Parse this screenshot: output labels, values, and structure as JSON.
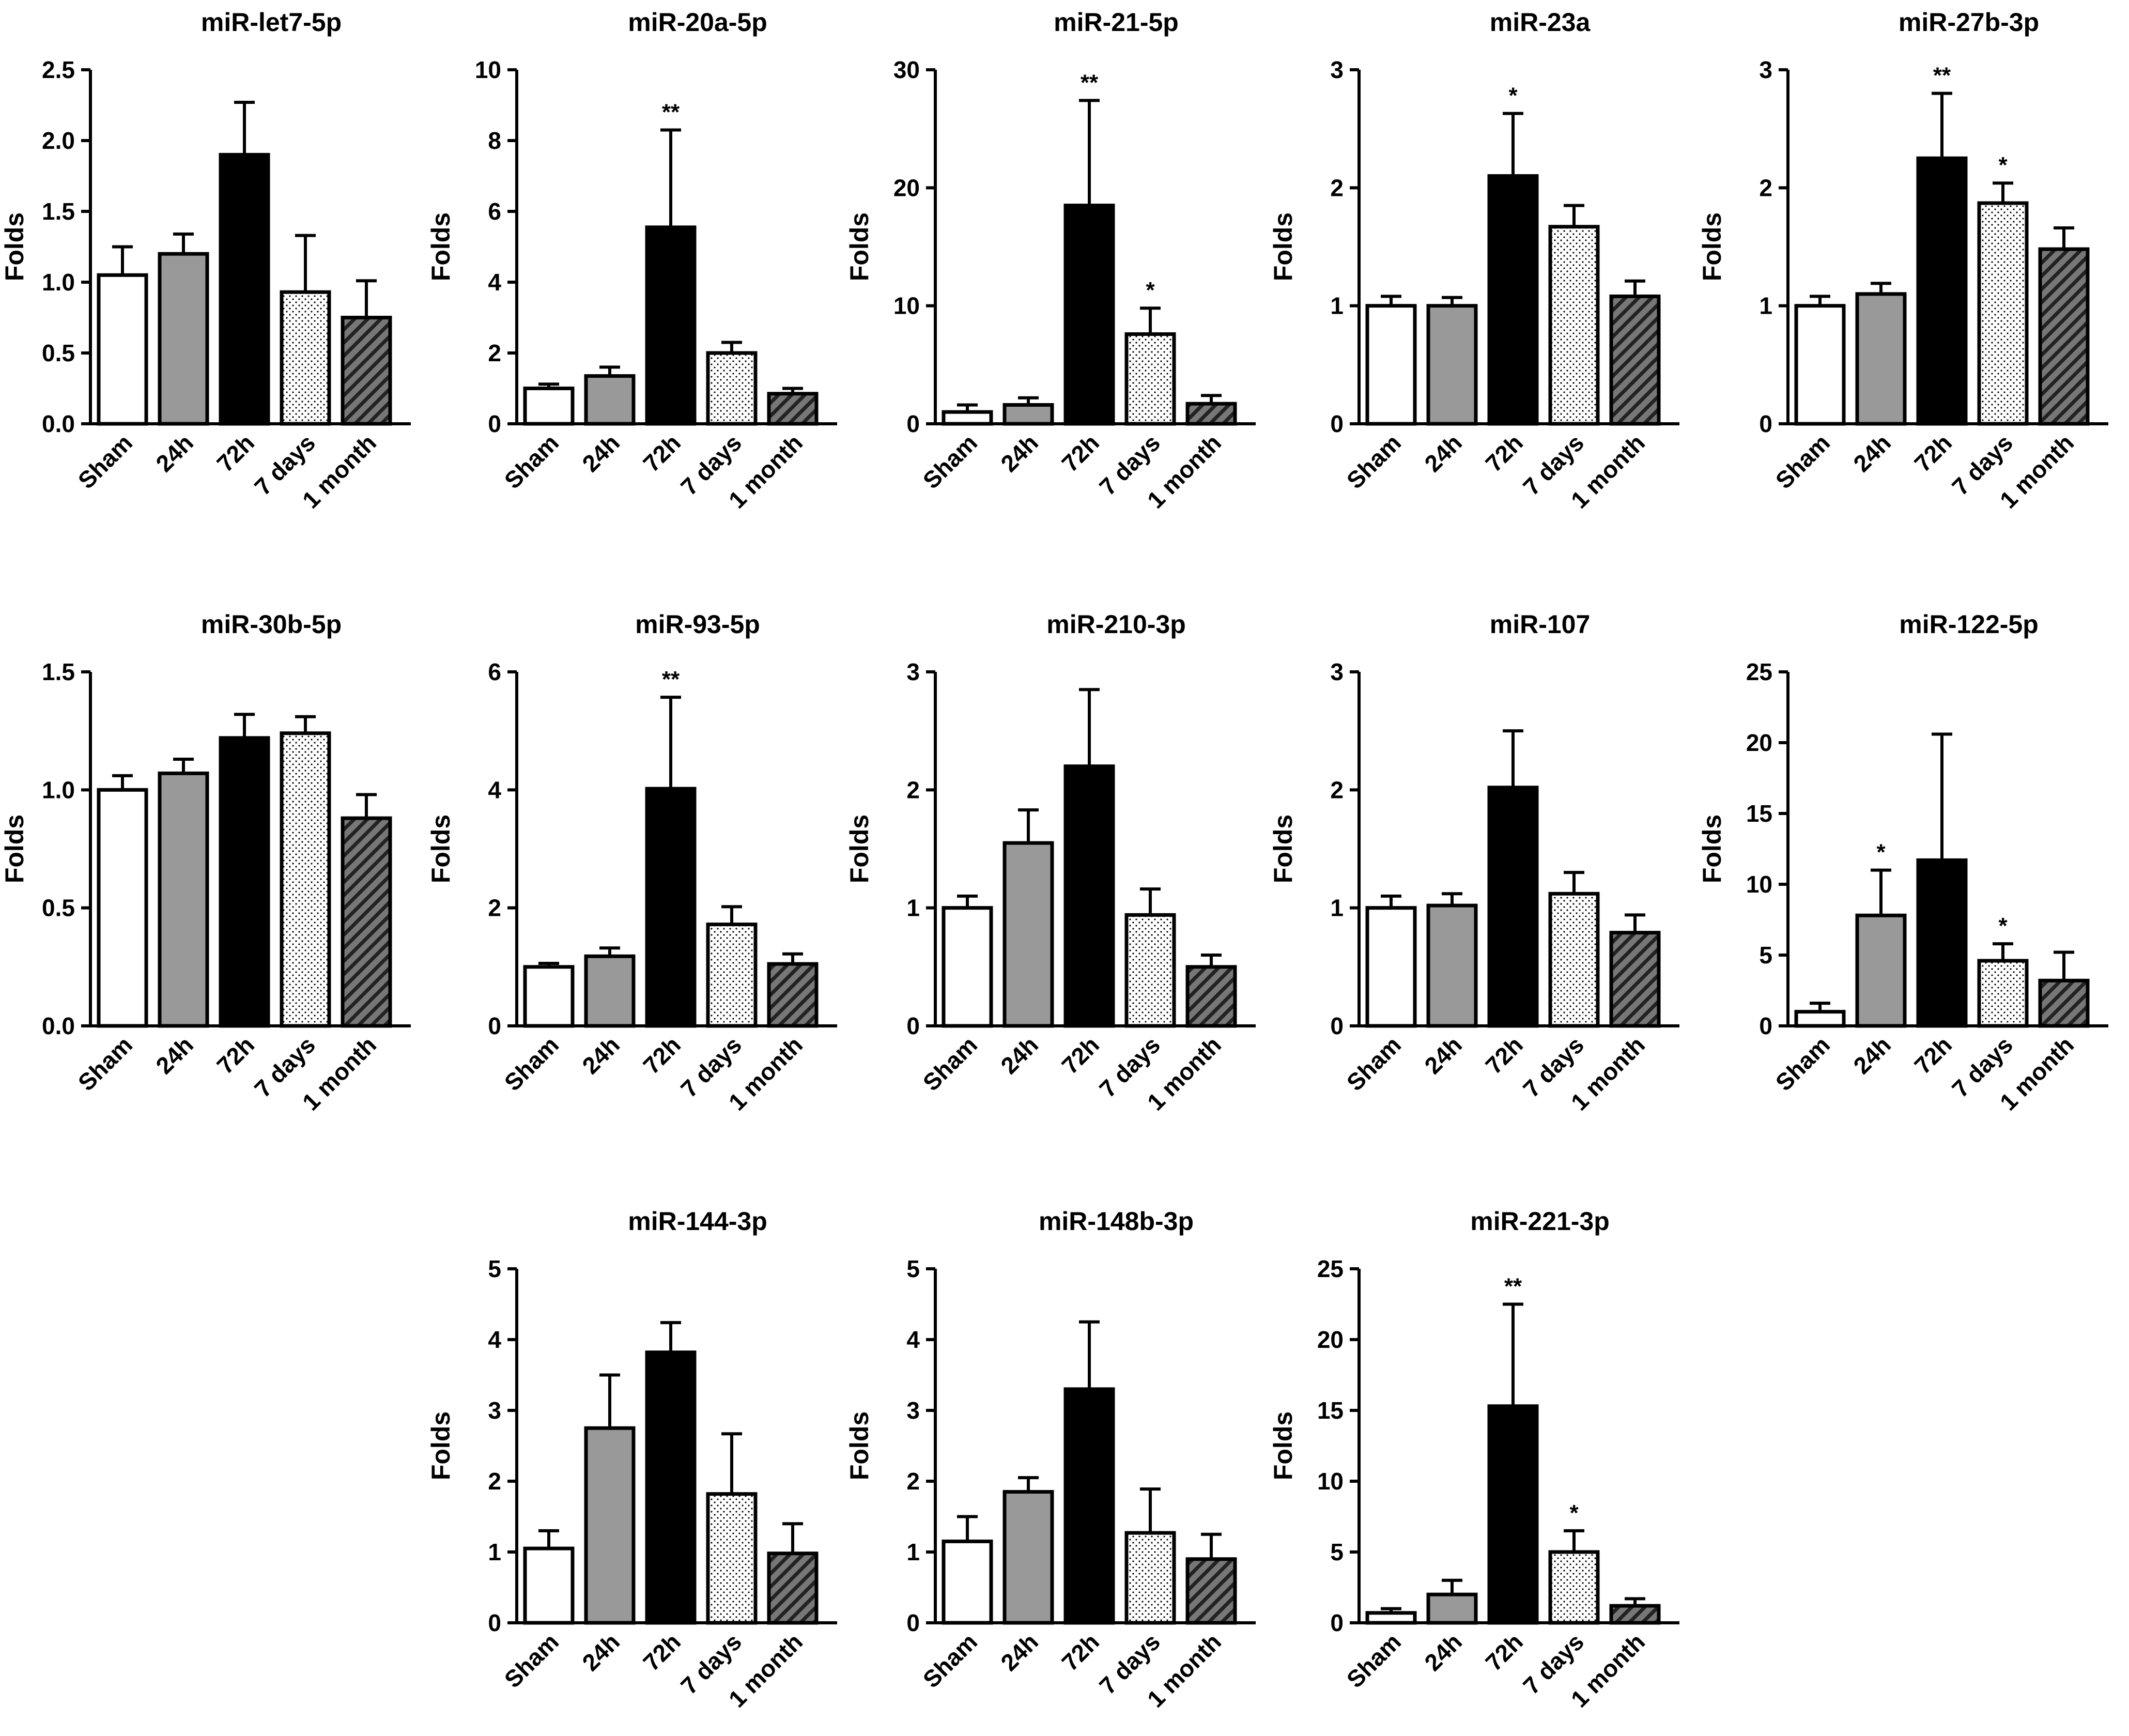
{
  "colors": {
    "sham": "#ffffff",
    "h24": "#999999",
    "h72": "#000000",
    "days7": "#ffffff",
    "month1": "#777777"
  },
  "chart_data": [
    {
      "type": "bar",
      "title": "miR-let7-5p",
      "ylabel": "Folds",
      "categories": [
        "Sham",
        "24h",
        "72h",
        "7 days",
        "1 month"
      ],
      "values": [
        1.05,
        1.2,
        1.9,
        0.93,
        0.75
      ],
      "errors": [
        0.2,
        0.14,
        0.37,
        0.4,
        0.26
      ],
      "significance": [
        "",
        "",
        "",
        "",
        ""
      ],
      "ylim": [
        0,
        2.5
      ],
      "yticks": [
        "0.0",
        "0.5",
        "1.0",
        "1.5",
        "2.0",
        "2.5"
      ]
    },
    {
      "type": "bar",
      "title": "miR-20a-5p",
      "ylabel": "Folds",
      "categories": [
        "Sham",
        "24h",
        "72h",
        "7 days",
        "1 month"
      ],
      "values": [
        1.0,
        1.35,
        5.55,
        2.0,
        0.85
      ],
      "errors": [
        0.12,
        0.25,
        2.75,
        0.3,
        0.15
      ],
      "significance": [
        "",
        "",
        "**",
        "",
        ""
      ],
      "ylim": [
        0,
        10
      ],
      "yticks": [
        "0",
        "2",
        "4",
        "6",
        "8",
        "10"
      ]
    },
    {
      "type": "bar",
      "title": "miR-21-5p",
      "ylabel": "Folds",
      "categories": [
        "Sham",
        "24h",
        "72h",
        "7 days",
        "1 month"
      ],
      "values": [
        1.0,
        1.6,
        18.5,
        7.6,
        1.7
      ],
      "errors": [
        0.6,
        0.6,
        8.9,
        2.2,
        0.7
      ],
      "significance": [
        "",
        "",
        "**",
        "*",
        ""
      ],
      "ylim": [
        0,
        30
      ],
      "yticks": [
        "0",
        "10",
        "20",
        "30"
      ]
    },
    {
      "type": "bar",
      "title": "miR-23a",
      "ylabel": "Folds",
      "categories": [
        "Sham",
        "24h",
        "72h",
        "7 days",
        "1 month"
      ],
      "values": [
        1.0,
        1.0,
        2.1,
        1.67,
        1.08
      ],
      "errors": [
        0.08,
        0.07,
        0.53,
        0.18,
        0.13
      ],
      "significance": [
        "",
        "",
        "*",
        "",
        ""
      ],
      "ylim": [
        0,
        3
      ],
      "yticks": [
        "0",
        "1",
        "2",
        "3"
      ]
    },
    {
      "type": "bar",
      "title": "miR-27b-3p",
      "ylabel": "Folds",
      "categories": [
        "Sham",
        "24h",
        "72h",
        "7 days",
        "1 month"
      ],
      "values": [
        1.0,
        1.1,
        2.25,
        1.87,
        1.48
      ],
      "errors": [
        0.08,
        0.09,
        0.55,
        0.17,
        0.18
      ],
      "significance": [
        "",
        "",
        "**",
        "*",
        ""
      ],
      "ylim": [
        0,
        3
      ],
      "yticks": [
        "0",
        "1",
        "2",
        "3"
      ]
    },
    {
      "type": "bar",
      "title": "miR-30b-5p",
      "ylabel": "Folds",
      "categories": [
        "Sham",
        "24h",
        "72h",
        "7 days",
        "1 month"
      ],
      "values": [
        1.0,
        1.07,
        1.22,
        1.24,
        0.88
      ],
      "errors": [
        0.06,
        0.06,
        0.1,
        0.07,
        0.1
      ],
      "significance": [
        "",
        "",
        "",
        "",
        ""
      ],
      "ylim": [
        0,
        1.5
      ],
      "yticks": [
        "0.0",
        "0.5",
        "1.0",
        "1.5"
      ]
    },
    {
      "type": "bar",
      "title": "miR-93-5p",
      "ylabel": "Folds",
      "categories": [
        "Sham",
        "24h",
        "72h",
        "7 days",
        "1 month"
      ],
      "values": [
        1.0,
        1.18,
        4.02,
        1.72,
        1.05
      ],
      "errors": [
        0.06,
        0.14,
        1.55,
        0.3,
        0.17
      ],
      "significance": [
        "",
        "",
        "**",
        "",
        ""
      ],
      "ylim": [
        0,
        6
      ],
      "yticks": [
        "0",
        "2",
        "4",
        "6"
      ]
    },
    {
      "type": "bar",
      "title": "miR-210-3p",
      "ylabel": "Folds",
      "categories": [
        "Sham",
        "24h",
        "72h",
        "7 days",
        "1 month"
      ],
      "values": [
        1.0,
        1.55,
        2.2,
        0.94,
        0.5
      ],
      "errors": [
        0.1,
        0.28,
        0.65,
        0.22,
        0.1
      ],
      "significance": [
        "",
        "",
        "",
        "",
        ""
      ],
      "ylim": [
        0,
        3
      ],
      "yticks": [
        "0",
        "1",
        "2",
        "3"
      ]
    },
    {
      "type": "bar",
      "title": "miR-107",
      "ylabel": "Folds",
      "categories": [
        "Sham",
        "24h",
        "72h",
        "7 days",
        "1 month"
      ],
      "values": [
        1.0,
        1.02,
        2.02,
        1.12,
        0.79
      ],
      "errors": [
        0.1,
        0.1,
        0.48,
        0.18,
        0.15
      ],
      "significance": [
        "",
        "",
        "",
        "",
        ""
      ],
      "ylim": [
        0,
        3
      ],
      "yticks": [
        "0",
        "1",
        "2",
        "3"
      ]
    },
    {
      "type": "bar",
      "title": "miR-122-5p",
      "ylabel": "Folds",
      "categories": [
        "Sham",
        "24h",
        "72h",
        "7 days",
        "1 month"
      ],
      "values": [
        1.0,
        7.8,
        11.7,
        4.6,
        3.2
      ],
      "errors": [
        0.6,
        3.2,
        8.9,
        1.2,
        2.0
      ],
      "significance": [
        "",
        "*",
        "",
        "*",
        ""
      ],
      "ylim": [
        0,
        25
      ],
      "yticks": [
        "0",
        "5",
        "10",
        "15",
        "20",
        "25"
      ]
    },
    {
      "type": "bar",
      "title": "miR-144-3p",
      "ylabel": "Folds",
      "categories": [
        "Sham",
        "24h",
        "72h",
        "7 days",
        "1 month"
      ],
      "values": [
        1.05,
        2.75,
        3.82,
        1.82,
        0.98
      ],
      "errors": [
        0.25,
        0.75,
        0.42,
        0.85,
        0.42
      ],
      "significance": [
        "",
        "",
        "",
        "",
        ""
      ],
      "ylim": [
        0,
        5
      ],
      "yticks": [
        "0",
        "1",
        "2",
        "3",
        "4",
        "5"
      ]
    },
    {
      "type": "bar",
      "title": "miR-148b-3p",
      "ylabel": "Folds",
      "categories": [
        "Sham",
        "24h",
        "72h",
        "7 days",
        "1 month"
      ],
      "values": [
        1.15,
        1.85,
        3.3,
        1.27,
        0.9
      ],
      "errors": [
        0.35,
        0.2,
        0.95,
        0.62,
        0.35
      ],
      "significance": [
        "",
        "",
        "",
        "",
        ""
      ],
      "ylim": [
        0,
        5
      ],
      "yticks": [
        "0",
        "1",
        "2",
        "3",
        "4",
        "5"
      ]
    },
    {
      "type": "bar",
      "title": "miR-221-3p",
      "ylabel": "Folds",
      "categories": [
        "Sham",
        "24h",
        "72h",
        "7 days",
        "1 month"
      ],
      "values": [
        0.7,
        2.0,
        15.3,
        5.0,
        1.2
      ],
      "errors": [
        0.3,
        1.0,
        7.2,
        1.5,
        0.5
      ],
      "significance": [
        "",
        "",
        "**",
        "*",
        ""
      ],
      "ylim": [
        0,
        25
      ],
      "yticks": [
        "0",
        "5",
        "10",
        "15",
        "20",
        "25"
      ]
    }
  ]
}
